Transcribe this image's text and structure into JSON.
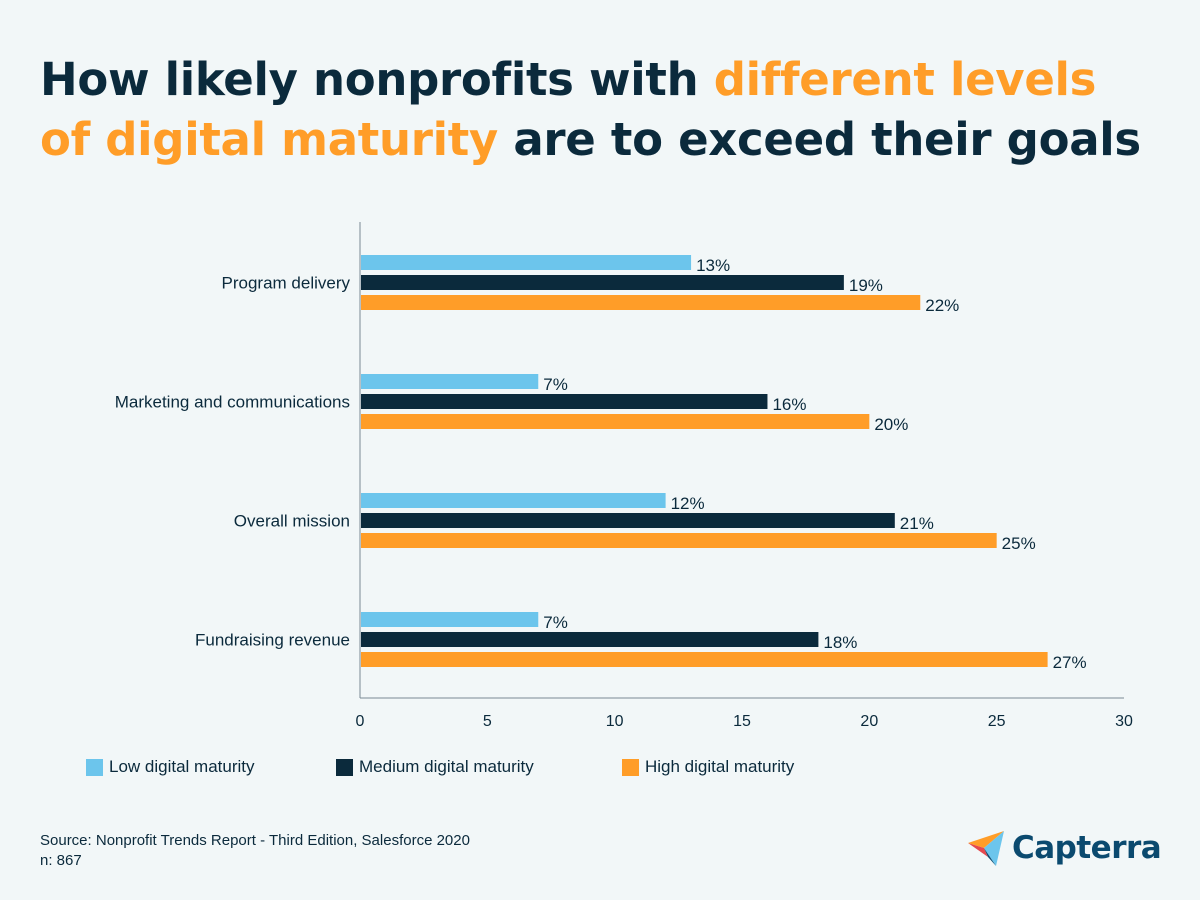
{
  "title": {
    "part1": "How likely nonprofits with ",
    "accent": "different levels of digital maturity",
    "part2": " are to exceed their goals"
  },
  "chart_data": {
    "type": "bar",
    "orientation": "horizontal",
    "categories": [
      "Program delivery",
      "Marketing and communications",
      "Overall mission",
      "Fundraising revenue"
    ],
    "series": [
      {
        "name": "Low digital maturity",
        "color": "#6cc5ec",
        "values": [
          13,
          7,
          12,
          7
        ],
        "labels": [
          "13%",
          "7%",
          "12%",
          "7%"
        ]
      },
      {
        "name": "Medium digital maturity",
        "color": "#0b2a3c",
        "values": [
          19,
          16,
          21,
          18
        ],
        "labels": [
          "19%",
          "16%",
          "21%",
          "18%"
        ]
      },
      {
        "name": "High digital maturity",
        "color": "#ff9d28",
        "values": [
          22,
          20,
          25,
          27
        ],
        "labels": [
          "22%",
          "20%",
          "25%",
          "27%"
        ]
      }
    ],
    "xlim": [
      0,
      30
    ],
    "xticks": [
      0,
      5,
      10,
      15,
      20,
      25,
      30
    ],
    "grid": false,
    "legend": "bottom"
  },
  "source": {
    "line1": "Source: Nonprofit Trends Report - Third Edition, Salesforce 2020",
    "line2": "n: 867"
  },
  "logo": {
    "text": "Capterra",
    "colors": {
      "blue": "#0b4a6f",
      "orange": "#ff9d28",
      "red": "#e5484d",
      "lightblue": "#6cc5ec"
    }
  }
}
